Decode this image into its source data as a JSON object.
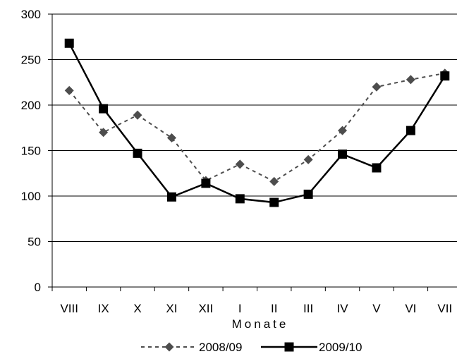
{
  "chart_data": {
    "type": "line",
    "categories": [
      "VIII",
      "IX",
      "X",
      "XI",
      "XII",
      "I",
      "II",
      "III",
      "IV",
      "V",
      "VI",
      "VII"
    ],
    "series": [
      {
        "name": "2008/09",
        "values": [
          216,
          170,
          189,
          164,
          117,
          135,
          116,
          140,
          172,
          220,
          228,
          235
        ],
        "color": "#4d4d4d",
        "line_style": "dashed",
        "marker": "diamond"
      },
      {
        "name": "2009/10",
        "values": [
          268,
          196,
          147,
          99,
          114,
          97,
          93,
          102,
          146,
          131,
          172,
          232
        ],
        "color": "#000000",
        "line_style": "solid",
        "marker": "square"
      }
    ],
    "xlabel": "Monate",
    "ylabel": "",
    "ylim": [
      0,
      300
    ],
    "yticks": [
      0,
      50,
      100,
      150,
      200,
      250,
      300
    ],
    "grid": "horizontal",
    "legend_position": "bottom"
  }
}
